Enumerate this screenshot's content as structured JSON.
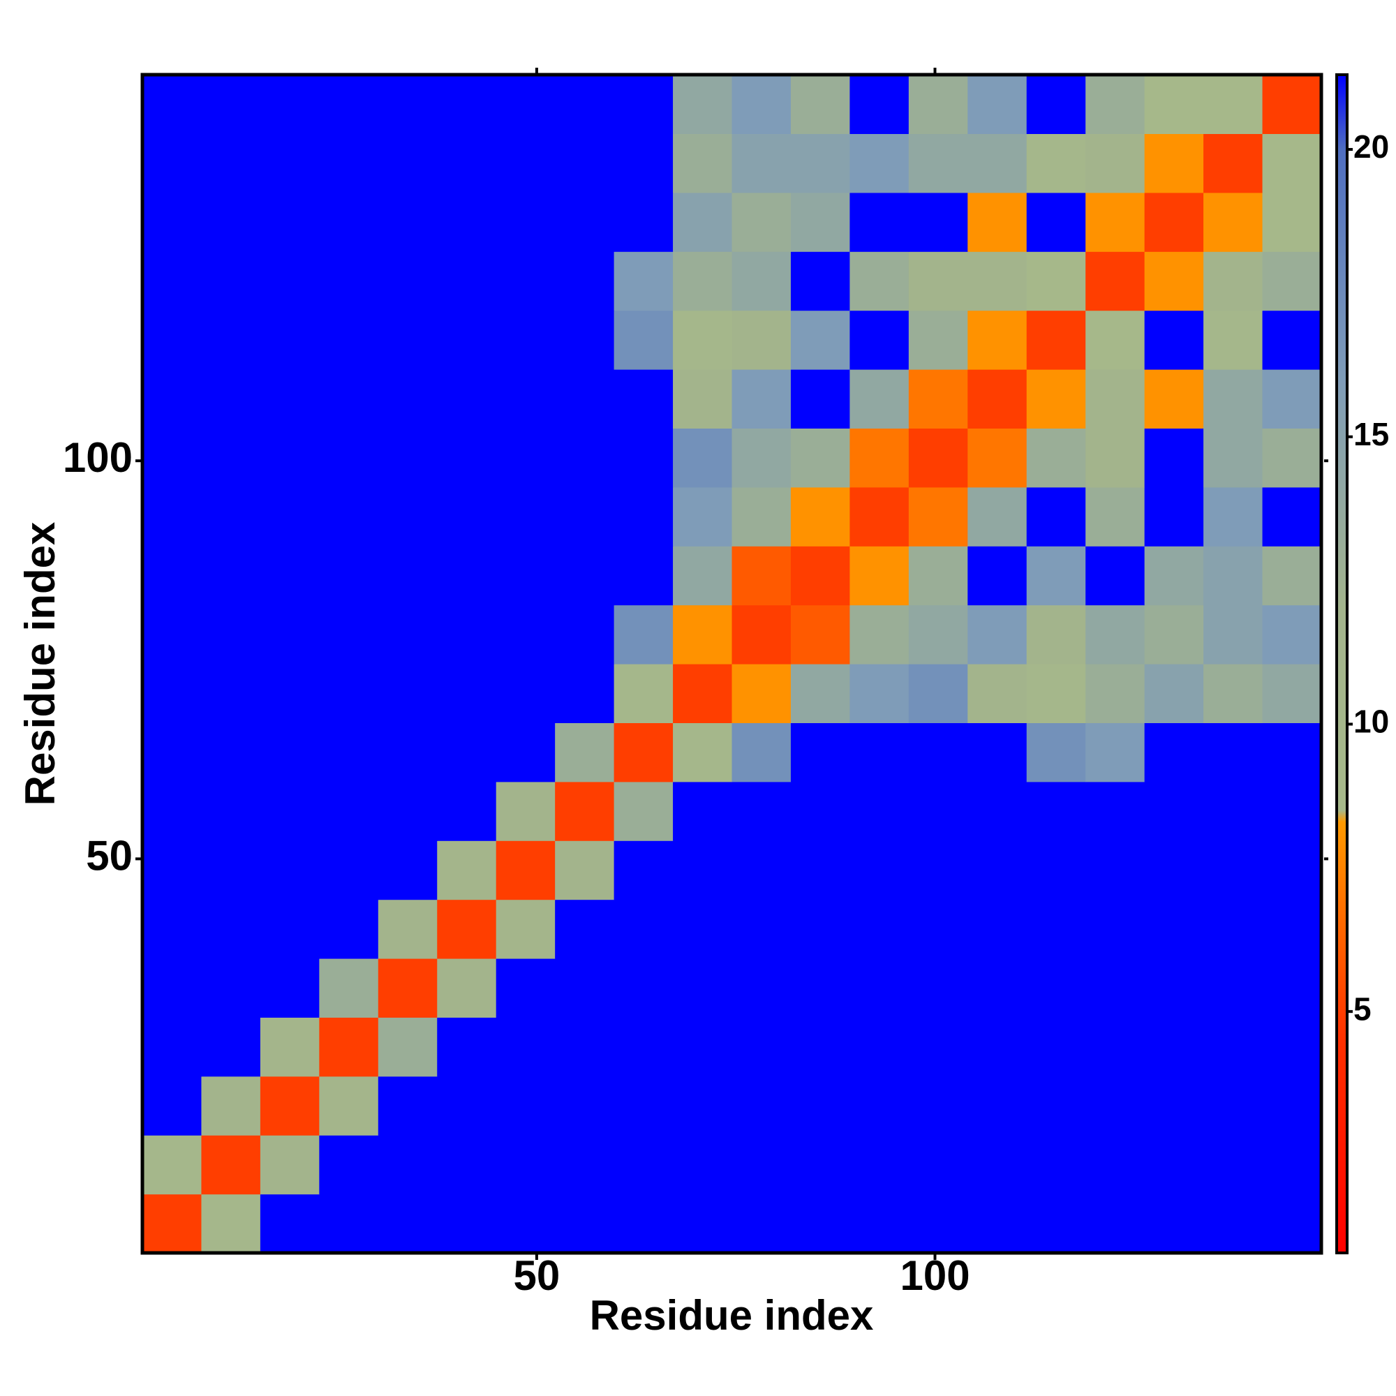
{
  "chart_data": {
    "type": "heatmap",
    "x_label": "Residue index",
    "y_label": "Residue index",
    "xbins": [
      0.5,
      7.9,
      15.3,
      22.7,
      30.1,
      37.5,
      44.9,
      52.3,
      59.7,
      67.1,
      74.5,
      81.9,
      89.3,
      96.7,
      104.1,
      111.5,
      118.9,
      126.3,
      133.7,
      141.1,
      148.5
    ],
    "ybins": [
      0.5,
      7.9,
      15.3,
      22.7,
      30.1,
      37.5,
      44.9,
      52.3,
      59.7,
      67.1,
      74.5,
      81.9,
      89.3,
      96.7,
      104.1,
      111.5,
      118.9,
      126.3,
      133.7,
      141.1,
      148.5
    ],
    "xlim": [
      0.5,
      148.5
    ],
    "ylim": [
      0.5,
      148.5
    ],
    "xticks": [
      50,
      100
    ],
    "yticks": [
      50,
      100
    ],
    "zlim": [
      0.8,
      21.3
    ],
    "colorbar_ticks": [
      5,
      10,
      15,
      20
    ],
    "colorscale": [
      [
        0.8,
        "#ff0000"
      ],
      [
        4.5,
        "#ff3000"
      ],
      [
        8.3,
        "#ff9a00"
      ],
      [
        8.5,
        "#a6b98a"
      ],
      [
        12,
        "#a3b48c"
      ],
      [
        16,
        "#7f9cb8"
      ],
      [
        20,
        "#4f6ec0"
      ],
      [
        21.3,
        "#0000ff"
      ]
    ],
    "z": [
      [
        5,
        10,
        21.3,
        21.3,
        21.3,
        21.3,
        21.3,
        21.3,
        21.3,
        21.3,
        21.3,
        21.3,
        21.3,
        21.3,
        21.3,
        21.3,
        21.3,
        21.3,
        21.3,
        21.3
      ],
      [
        10,
        5,
        12,
        21.3,
        21.3,
        21.3,
        21.3,
        21.3,
        21.3,
        21.3,
        21.3,
        21.3,
        21.3,
        21.3,
        21.3,
        21.3,
        21.3,
        21.3,
        21.3,
        21.3
      ],
      [
        21.3,
        12,
        5,
        11,
        21.3,
        21.3,
        21.3,
        21.3,
        21.3,
        21.3,
        21.3,
        21.3,
        21.3,
        21.3,
        21.3,
        21.3,
        21.3,
        21.3,
        21.3,
        21.3
      ],
      [
        21.3,
        21.3,
        11,
        5,
        13,
        21.3,
        21.3,
        21.3,
        21.3,
        21.3,
        21.3,
        21.3,
        21.3,
        21.3,
        21.3,
        21.3,
        21.3,
        21.3,
        21.3,
        21.3
      ],
      [
        21.3,
        21.3,
        21.3,
        13,
        5,
        12,
        21.3,
        21.3,
        21.3,
        21.3,
        21.3,
        21.3,
        21.3,
        21.3,
        21.3,
        21.3,
        21.3,
        21.3,
        21.3,
        21.3
      ],
      [
        21.3,
        21.3,
        21.3,
        21.3,
        12,
        5,
        11,
        21.3,
        21.3,
        21.3,
        21.3,
        21.3,
        21.3,
        21.3,
        21.3,
        21.3,
        21.3,
        21.3,
        21.3,
        21.3
      ],
      [
        21.3,
        21.3,
        21.3,
        21.3,
        21.3,
        11,
        5,
        12,
        21.3,
        21.3,
        21.3,
        21.3,
        21.3,
        21.3,
        21.3,
        21.3,
        21.3,
        21.3,
        21.3,
        21.3
      ],
      [
        21.3,
        21.3,
        21.3,
        21.3,
        21.3,
        21.3,
        12,
        5,
        13,
        21.3,
        21.3,
        21.3,
        21.3,
        21.3,
        21.3,
        21.3,
        21.3,
        21.3,
        21.3,
        21.3
      ],
      [
        21.3,
        21.3,
        21.3,
        21.3,
        21.3,
        21.3,
        21.3,
        13,
        5,
        10,
        17,
        21.3,
        21.3,
        21.3,
        21.3,
        17,
        16,
        21.3,
        21.3,
        21.3
      ],
      [
        21.3,
        21.3,
        21.3,
        21.3,
        21.3,
        21.3,
        21.3,
        21.3,
        10,
        5,
        8,
        14,
        16,
        17,
        12,
        10,
        13,
        15,
        13,
        14
      ],
      [
        21.3,
        21.3,
        21.3,
        21.3,
        21.3,
        21.3,
        21.3,
        21.3,
        17,
        8,
        5,
        6,
        13,
        14,
        16,
        12,
        14,
        13,
        15,
        16
      ],
      [
        21.3,
        21.3,
        21.3,
        21.3,
        21.3,
        21.3,
        21.3,
        21.3,
        21.3,
        14,
        6,
        5,
        8,
        13,
        21.3,
        16,
        21.3,
        14,
        15,
        13
      ],
      [
        21.3,
        21.3,
        21.3,
        21.3,
        21.3,
        21.3,
        21.3,
        21.3,
        21.3,
        16,
        13,
        8,
        5,
        7,
        14,
        21.3,
        13,
        21.3,
        16,
        21.3
      ],
      [
        21.3,
        21.3,
        21.3,
        21.3,
        21.3,
        21.3,
        21.3,
        21.3,
        21.3,
        17,
        14,
        13,
        7,
        5,
        7,
        13,
        12,
        21.3,
        14,
        13
      ],
      [
        21.3,
        21.3,
        21.3,
        21.3,
        21.3,
        21.3,
        21.3,
        21.3,
        21.3,
        12,
        16,
        21.3,
        14,
        7,
        5,
        8,
        12,
        8,
        14,
        16
      ],
      [
        21.3,
        21.3,
        21.3,
        21.3,
        21.3,
        21.3,
        21.3,
        21.3,
        17,
        10,
        12,
        16,
        21.3,
        13,
        8,
        5,
        9,
        21.3,
        10,
        21.3
      ],
      [
        21.3,
        21.3,
        21.3,
        21.3,
        21.3,
        21.3,
        21.3,
        21.3,
        16,
        13,
        14,
        21.3,
        13,
        12,
        12,
        9,
        5,
        8,
        12,
        13
      ],
      [
        21.3,
        21.3,
        21.3,
        21.3,
        21.3,
        21.3,
        21.3,
        21.3,
        21.3,
        15,
        13,
        14,
        21.3,
        21.3,
        8,
        21.3,
        8,
        5,
        8,
        9
      ],
      [
        21.3,
        21.3,
        21.3,
        21.3,
        21.3,
        21.3,
        21.3,
        21.3,
        21.3,
        13,
        15,
        15,
        16,
        14,
        14,
        10,
        12,
        8,
        5,
        9
      ],
      [
        21.3,
        21.3,
        21.3,
        21.3,
        21.3,
        21.3,
        21.3,
        21.3,
        21.3,
        14,
        16,
        13,
        21.3,
        13,
        16,
        21.3,
        13,
        9,
        9,
        5
      ]
    ]
  }
}
